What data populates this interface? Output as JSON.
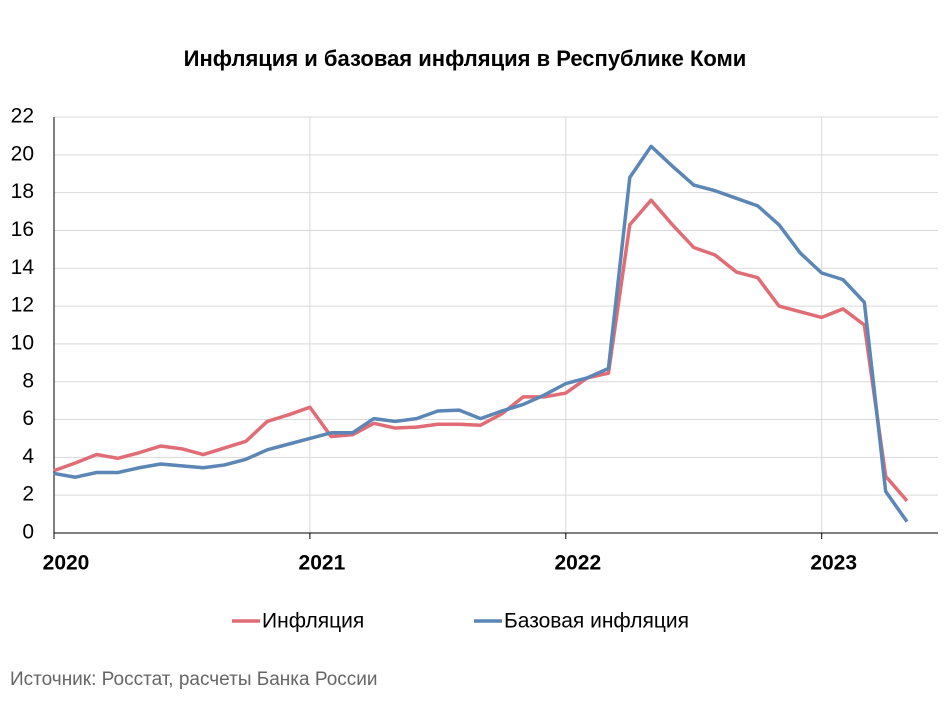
{
  "chart_data": {
    "type": "line",
    "title": "Инфляция и базовая инфляция в Республике Коми",
    "source": "Источник: Росстат, расчеты Банка России",
    "categories": [
      "2020",
      null,
      null,
      null,
      null,
      null,
      null,
      null,
      null,
      null,
      null,
      null,
      "2021",
      null,
      null,
      null,
      null,
      null,
      null,
      null,
      null,
      null,
      null,
      null,
      "2022",
      null,
      null,
      null,
      null,
      null,
      null,
      null,
      null,
      null,
      null,
      null,
      "2023",
      null,
      null,
      null,
      null
    ],
    "series": [
      {
        "name": "Инфляция",
        "color": "#e06c75",
        "values": [
          3.3,
          3.7,
          4.15,
          3.95,
          4.25,
          4.6,
          4.45,
          4.15,
          4.5,
          4.85,
          5.9,
          6.25,
          6.65,
          5.1,
          5.2,
          5.8,
          5.55,
          5.6,
          5.75,
          5.75,
          5.7,
          6.3,
          7.2,
          7.2,
          7.4,
          8.2,
          8.45,
          16.3,
          17.6,
          16.3,
          15.1,
          14.7,
          13.8,
          13.5,
          12.0,
          11.7,
          11.4,
          11.85,
          11.0,
          3.0,
          1.7
        ]
      },
      {
        "name": "Базовая инфляция",
        "color": "#5b86b5",
        "values": [
          3.15,
          2.95,
          3.2,
          3.2,
          3.45,
          3.65,
          3.55,
          3.45,
          3.6,
          3.9,
          4.4,
          4.7,
          5.0,
          5.3,
          5.3,
          6.05,
          5.9,
          6.05,
          6.45,
          6.5,
          6.05,
          6.45,
          6.8,
          7.3,
          7.9,
          8.2,
          8.7,
          18.8,
          20.45,
          19.4,
          18.4,
          18.1,
          17.7,
          17.3,
          16.3,
          14.8,
          13.75,
          13.4,
          12.2,
          2.2,
          0.6
        ]
      }
    ],
    "ylim": [
      0,
      22
    ],
    "yticks": [
      0,
      2,
      4,
      6,
      8,
      10,
      12,
      14,
      16,
      18,
      20,
      22
    ],
    "grid": true,
    "legend": "bottom"
  }
}
